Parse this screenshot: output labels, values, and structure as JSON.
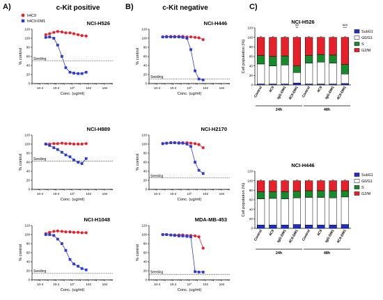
{
  "panels": [
    {
      "letter": "A)",
      "title": "c-Kit positive"
    },
    {
      "letter": "B)",
      "title": "c-Kit negative"
    },
    {
      "letter": "C)",
      "title": ""
    }
  ],
  "legend": [
    {
      "name": "h4C9",
      "color": "#e8202a"
    },
    {
      "name": "h4C9-DM1",
      "color": "#2c3bd6"
    }
  ],
  "cell_cycle_legend": [
    {
      "name": "SubG1",
      "color": "#1f2fcf"
    },
    {
      "name": "G0/G1",
      "color": "#ffffff"
    },
    {
      "name": "S",
      "color": "#178a2b"
    },
    {
      "name": "G2/M",
      "color": "#e8202a"
    }
  ],
  "chart_data": [
    {
      "type": "scatter",
      "title": "NCI-H526",
      "xlabel": "Conc. (ug/ml)",
      "ylabel": "% control",
      "xscale": "log",
      "xlim": [
        1e-05,
        100000
      ],
      "ylim": [
        0,
        120
      ],
      "ytick_values": [
        0,
        20,
        40,
        60,
        80,
        100,
        120
      ],
      "xtick_labels": [
        "10-4",
        "10-2",
        "10°",
        "102",
        "104"
      ],
      "seeding": {
        "label": "Seeding",
        "value": 50
      },
      "series": [
        {
          "name": "h4C9",
          "color": "#e8202a",
          "x": [
            0.0005,
            0.0015,
            0.005,
            0.015,
            0.05,
            0.15,
            0.5,
            1.5,
            5,
            15,
            50
          ],
          "y": [
            108,
            110,
            113,
            115,
            114,
            112,
            112,
            110,
            108,
            106,
            105
          ]
        },
        {
          "name": "h4C9-DM1",
          "color": "#2c3bd6",
          "x": [
            0.0005,
            0.0015,
            0.005,
            0.015,
            0.05,
            0.15,
            0.5,
            1.5,
            5,
            15,
            50
          ],
          "y": [
            102,
            103,
            100,
            85,
            60,
            35,
            25,
            23,
            22,
            22,
            25
          ]
        }
      ]
    },
    {
      "type": "scatter",
      "title": "NCI-H889",
      "xlabel": "Conc. (ug/ml)",
      "ylabel": "% control",
      "xscale": "log",
      "xlim": [
        1e-05,
        100000
      ],
      "ylim": [
        0,
        120
      ],
      "ytick_values": [
        0,
        20,
        40,
        60,
        80,
        100,
        120
      ],
      "xtick_labels": [
        "10-4",
        "10-2",
        "10°",
        "102",
        "104"
      ],
      "seeding": {
        "label": "Seeding",
        "value": 62
      },
      "series": [
        {
          "name": "h4C9",
          "color": "#e8202a",
          "x": [
            0.0005,
            0.0015,
            0.005,
            0.015,
            0.05,
            0.15,
            0.5,
            1.5,
            5,
            15,
            50
          ],
          "y": [
            100,
            100,
            101,
            101,
            102,
            101,
            101,
            100,
            100,
            100,
            101
          ]
        },
        {
          "name": "h4C9-DM1",
          "color": "#2c3bd6",
          "x": [
            0.0005,
            0.0015,
            0.005,
            0.015,
            0.05,
            0.15,
            0.5,
            1.5,
            5,
            15,
            50
          ],
          "y": [
            100,
            97,
            92,
            88,
            82,
            76,
            72,
            65,
            60,
            57,
            68
          ]
        }
      ]
    },
    {
      "type": "scatter",
      "title": "NCI-H1048",
      "xlabel": "Conc. (ug/ml)",
      "ylabel": "% control",
      "xscale": "log",
      "xlim": [
        1e-05,
        100000
      ],
      "ylim": [
        0,
        120
      ],
      "ytick_values": [
        0,
        20,
        40,
        60,
        80,
        100,
        120
      ],
      "xtick_labels": [
        "10-4",
        "10-2",
        "10°",
        "102",
        "104"
      ],
      "seeding": {
        "label": "Seeding",
        "value": 15
      },
      "series": [
        {
          "name": "h4C9",
          "color": "#e8202a",
          "x": [
            0.0005,
            0.0015,
            0.005,
            0.015,
            0.05,
            0.15,
            0.5,
            1.5,
            5,
            15,
            50
          ],
          "y": [
            102,
            105,
            107,
            108,
            107,
            106,
            106,
            105,
            105,
            104,
            104
          ]
        },
        {
          "name": "h4C9-DM1",
          "color": "#2c3bd6",
          "x": [
            0.0005,
            0.0015,
            0.005,
            0.015,
            0.05,
            0.15,
            0.5,
            1.5,
            5,
            15,
            50
          ],
          "y": [
            100,
            100,
            98,
            90,
            80,
            65,
            45,
            35,
            30,
            25,
            22
          ]
        }
      ]
    },
    {
      "type": "scatter",
      "title": "NCI-H446",
      "xlabel": "Conc. (ug/ml)",
      "ylabel": "% control",
      "xscale": "log",
      "xlim": [
        1e-05,
        100000
      ],
      "ylim": [
        0,
        120
      ],
      "ytick_values": [
        0,
        20,
        40,
        60,
        80,
        100,
        120
      ],
      "xtick_labels": [
        "10-4",
        "10-2",
        "10°",
        "102",
        "104"
      ],
      "seeding": {
        "label": "Seeding",
        "value": 10
      },
      "series": [
        {
          "name": "h4C9",
          "color": "#e8202a",
          "x": [
            0.0005,
            0.0015,
            0.005,
            0.015,
            0.05,
            0.15,
            0.5,
            1.5,
            5,
            15,
            50
          ],
          "y": [
            103,
            104,
            104,
            104,
            104,
            104,
            103,
            103,
            102,
            101,
            97
          ]
        },
        {
          "name": "h4C9-DM1",
          "color": "#2c3bd6",
          "x": [
            0.0005,
            0.0015,
            0.005,
            0.015,
            0.05,
            0.15,
            0.5,
            1.5,
            5,
            15,
            50
          ],
          "y": [
            103,
            103,
            103,
            103,
            103,
            102,
            100,
            75,
            28,
            10,
            8
          ]
        }
      ]
    },
    {
      "type": "scatter",
      "title": "NCI-H2170",
      "xlabel": "Conc. (ug/ml)",
      "ylabel": "% control",
      "xscale": "log",
      "xlim": [
        1e-05,
        100000
      ],
      "ylim": [
        0,
        120
      ],
      "ytick_values": [
        0,
        20,
        40,
        60,
        80,
        100,
        120
      ],
      "xtick_labels": [
        "10-4",
        "10-2",
        "10°",
        "102",
        "104"
      ],
      "seeding": {
        "label": "Seeding",
        "value": 25
      },
      "series": [
        {
          "name": "h4C9",
          "color": "#e8202a",
          "x": [
            0.0005,
            0.0015,
            0.005,
            0.015,
            0.05,
            0.15,
            0.5,
            1.5,
            5,
            15,
            50
          ],
          "y": [
            101,
            102,
            103,
            103,
            103,
            103,
            103,
            102,
            101,
            99,
            92
          ]
        },
        {
          "name": "h4C9-DM1",
          "color": "#2c3bd6",
          "x": [
            0.0005,
            0.0015,
            0.005,
            0.015,
            0.05,
            0.15,
            0.5,
            1.5,
            5,
            15,
            50
          ],
          "y": [
            101,
            102,
            103,
            103,
            102,
            102,
            100,
            95,
            60,
            42,
            35
          ]
        }
      ]
    },
    {
      "type": "scatter",
      "title": "MDA-MB-453",
      "xlabel": "Conc. (ug/ml)",
      "ylabel": "% control",
      "xscale": "log",
      "xlim": [
        1e-05,
        100000
      ],
      "ylim": [
        0,
        120
      ],
      "ytick_values": [
        0,
        20,
        40,
        60,
        80,
        100,
        120
      ],
      "xtick_labels": [
        "10-4",
        "10-2",
        "10°",
        "102",
        "104"
      ],
      "seeding": {
        "label": "Seeding",
        "value": 12
      },
      "series": [
        {
          "name": "h4C9",
          "color": "#e8202a",
          "x": [
            0.0005,
            0.0015,
            0.005,
            0.015,
            0.05,
            0.15,
            0.5,
            1.5,
            5,
            15,
            50
          ],
          "y": [
            100,
            100,
            99,
            99,
            99,
            99,
            98,
            98,
            97,
            95,
            70
          ]
        },
        {
          "name": "h4C9-DM1",
          "color": "#2c3bd6",
          "x": [
            0.0005,
            0.0015,
            0.005,
            0.015,
            0.05,
            0.15,
            0.5,
            1.5,
            5,
            15,
            50
          ],
          "y": [
            100,
            100,
            99,
            98,
            97,
            97,
            96,
            95,
            18,
            17,
            17
          ]
        }
      ]
    },
    {
      "type": "bar",
      "stacked": true,
      "title": "NCI-H526",
      "ylabel": "Cell population (%)",
      "ylim": [
        0,
        120
      ],
      "ytick_values": [
        0,
        20,
        40,
        60,
        80,
        100,
        120
      ],
      "categories": [
        "Control",
        "4C9",
        "IgG-DM1",
        "4C9-DM1",
        "Control",
        "4C9",
        "IgG-DM1",
        "4C9-DM1"
      ],
      "groups": [
        {
          "label": "24h",
          "from": 0,
          "to": 3
        },
        {
          "label": "48h",
          "from": 4,
          "to": 7
        }
      ],
      "significance": [
        "",
        "",
        "",
        "##\n**",
        "",
        "",
        "",
        "###\n***"
      ],
      "series": [
        {
          "name": "SubG1",
          "color": "#1f2fcf",
          "values": [
            2,
            2,
            2,
            4,
            2,
            2,
            2,
            3
          ]
        },
        {
          "name": "G0/G1",
          "color": "#ffffff",
          "values": [
            42,
            38,
            40,
            22,
            44,
            46,
            44,
            20
          ]
        },
        {
          "name": "S",
          "color": "#178a2b",
          "values": [
            18,
            20,
            19,
            14,
            16,
            16,
            17,
            20
          ]
        },
        {
          "name": "G2/M",
          "color": "#e8202a",
          "values": [
            38,
            40,
            39,
            60,
            38,
            36,
            37,
            57
          ]
        }
      ]
    },
    {
      "type": "bar",
      "stacked": true,
      "title": "NCI-H446",
      "ylabel": "Cell population (%)",
      "ylim": [
        0,
        120
      ],
      "ytick_values": [
        0,
        20,
        40,
        60,
        80,
        100,
        120
      ],
      "categories": [
        "Control",
        "4C9",
        "IgG-DM1",
        "4C9-DM1",
        "Control",
        "4C9",
        "IgG-DM1",
        "4C9-DM1"
      ],
      "groups": [
        {
          "label": "24h",
          "from": 0,
          "to": 3
        },
        {
          "label": "48h",
          "from": 4,
          "to": 7
        }
      ],
      "significance": [
        "",
        "",
        "",
        "",
        "",
        "",
        "",
        ""
      ],
      "series": [
        {
          "name": "SubG1",
          "color": "#1f2fcf",
          "values": [
            7,
            7,
            7,
            8,
            7,
            7,
            7,
            8
          ]
        },
        {
          "name": "G0/G1",
          "color": "#ffffff",
          "values": [
            55,
            56,
            55,
            56,
            58,
            58,
            57,
            58
          ]
        },
        {
          "name": "S",
          "color": "#178a2b",
          "values": [
            15,
            14,
            15,
            14,
            14,
            14,
            15,
            13
          ]
        },
        {
          "name": "G2/M",
          "color": "#e8202a",
          "values": [
            23,
            23,
            23,
            22,
            21,
            21,
            21,
            21
          ]
        }
      ]
    }
  ]
}
